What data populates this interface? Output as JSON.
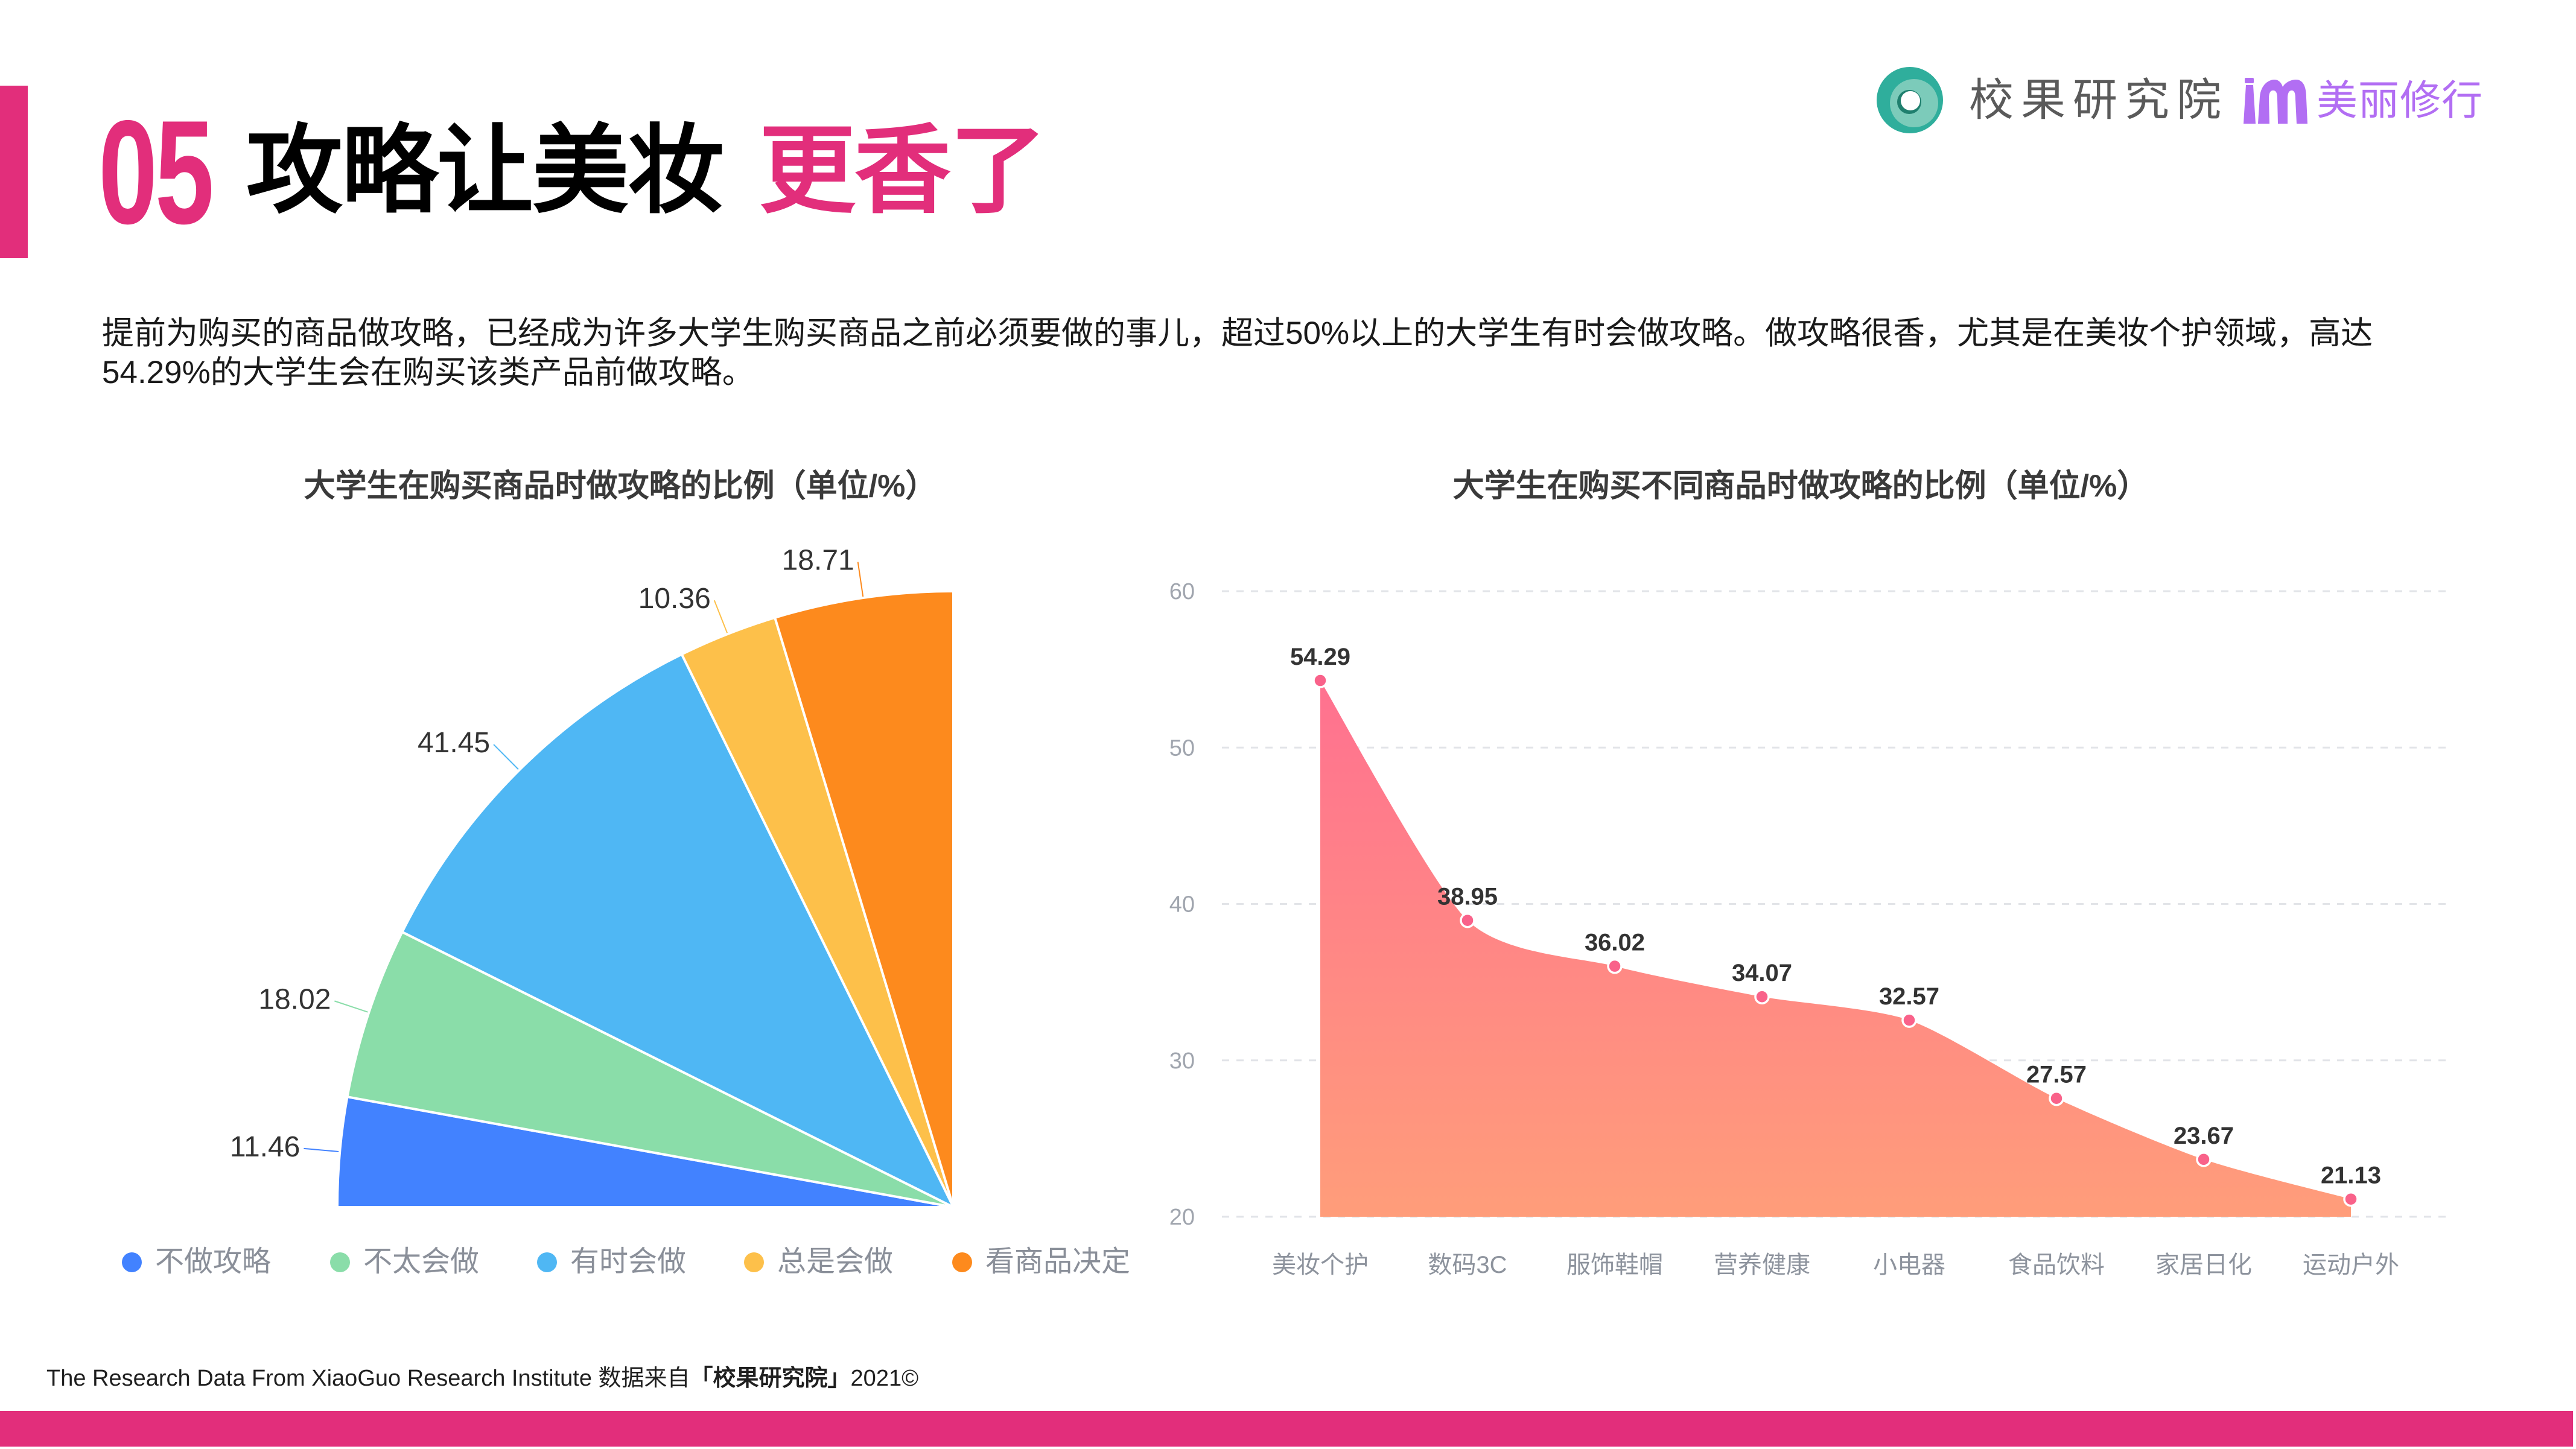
{
  "header": {
    "section_number": "05",
    "title_black": "攻略让美妆",
    "title_pink": "更香了"
  },
  "logo": {
    "brand1": "校果研究院",
    "brand2_icon": "m-lipstick-logo",
    "brand2": "美丽修行"
  },
  "intro": {
    "lines": [
      "提前为购买的商品做攻略，已经成为许多大学生购买商品之前必须要做的事儿，超过50%以上的大学生有时会做攻略。做攻略很香，尤其是在美妆个护领域，高达",
      "54.29%的大学生会在购买该类产品前做攻略。"
    ]
  },
  "colors": {
    "accent": "#E22E7B",
    "logo_teal": "#2FAE9C",
    "logo_purple": "#B26EF3"
  },
  "chart_data": [
    {
      "type": "pie",
      "variant": "quarter-pie",
      "title": "大学生在购买商品时做攻略的比例（单位/%）",
      "categories": [
        "不做攻略",
        "不太会做",
        "有时会做",
        "总是会做",
        "看商品决定"
      ],
      "values": [
        11.46,
        18.02,
        41.45,
        10.36,
        18.71
      ],
      "value_labels": [
        "11.46",
        "18.02",
        "41.45",
        "10.36",
        "18.71"
      ],
      "colors": [
        "#4282FF",
        "#8ADDA9",
        "#4FB7F4",
        "#FDC04A",
        "#FD8A1D"
      ],
      "start_angle": 180,
      "end_angle": 90,
      "legend_position": "bottom"
    },
    {
      "type": "area",
      "title": "大学生在购买不同商品时做攻略的比例（单位/%）",
      "categories": [
        "美妆个护",
        "数码3C",
        "服饰鞋帽",
        "营养健康",
        "小电器",
        "食品饮料",
        "家居日化",
        "运动户外"
      ],
      "values": [
        54.29,
        38.95,
        36.02,
        34.07,
        32.57,
        27.57,
        23.67,
        21.13
      ],
      "value_labels": [
        "54.29",
        "38.95",
        "36.02",
        "34.07",
        "32.57",
        "27.57",
        "23.67",
        "21.13"
      ],
      "xlabel": "",
      "ylabel": "",
      "ylim": [
        20,
        60
      ],
      "yticks": [
        20,
        30,
        40,
        50,
        60
      ],
      "grid": true,
      "smooth": true,
      "fill_gradient": [
        "#FF7190",
        "#FF9D7A"
      ],
      "point_color": "#F9628A"
    }
  ],
  "footer": {
    "source_prefix": "The Research Data From XiaoGuo Research Institute 数据来自",
    "source_brand": "「校果研究院」",
    "source_suffix": "2021©"
  }
}
